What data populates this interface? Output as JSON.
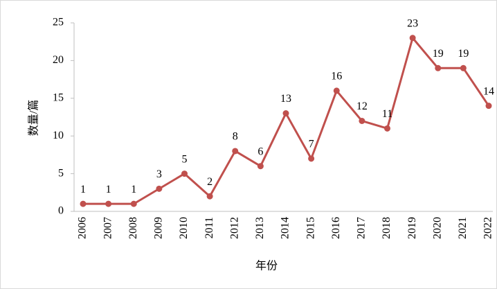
{
  "chart_data": {
    "type": "line",
    "categories": [
      "2006",
      "2007",
      "2008",
      "2009",
      "2010",
      "2011",
      "2012",
      "2013",
      "2014",
      "2015",
      "2016",
      "2017",
      "2018",
      "2019",
      "2020",
      "2021",
      "2022"
    ],
    "series": [
      {
        "name": null,
        "color": "#c0504d",
        "values": [
          1,
          1,
          1,
          3,
          5,
          2,
          8,
          6,
          13,
          7,
          16,
          12,
          11,
          23,
          19,
          19,
          14
        ]
      }
    ],
    "ylim": [
      0,
      25
    ],
    "yticks": [
      0,
      5,
      10,
      15,
      20,
      25
    ],
    "ylabel": "数量/篇",
    "xlabel": "年份",
    "data_labels": true
  }
}
